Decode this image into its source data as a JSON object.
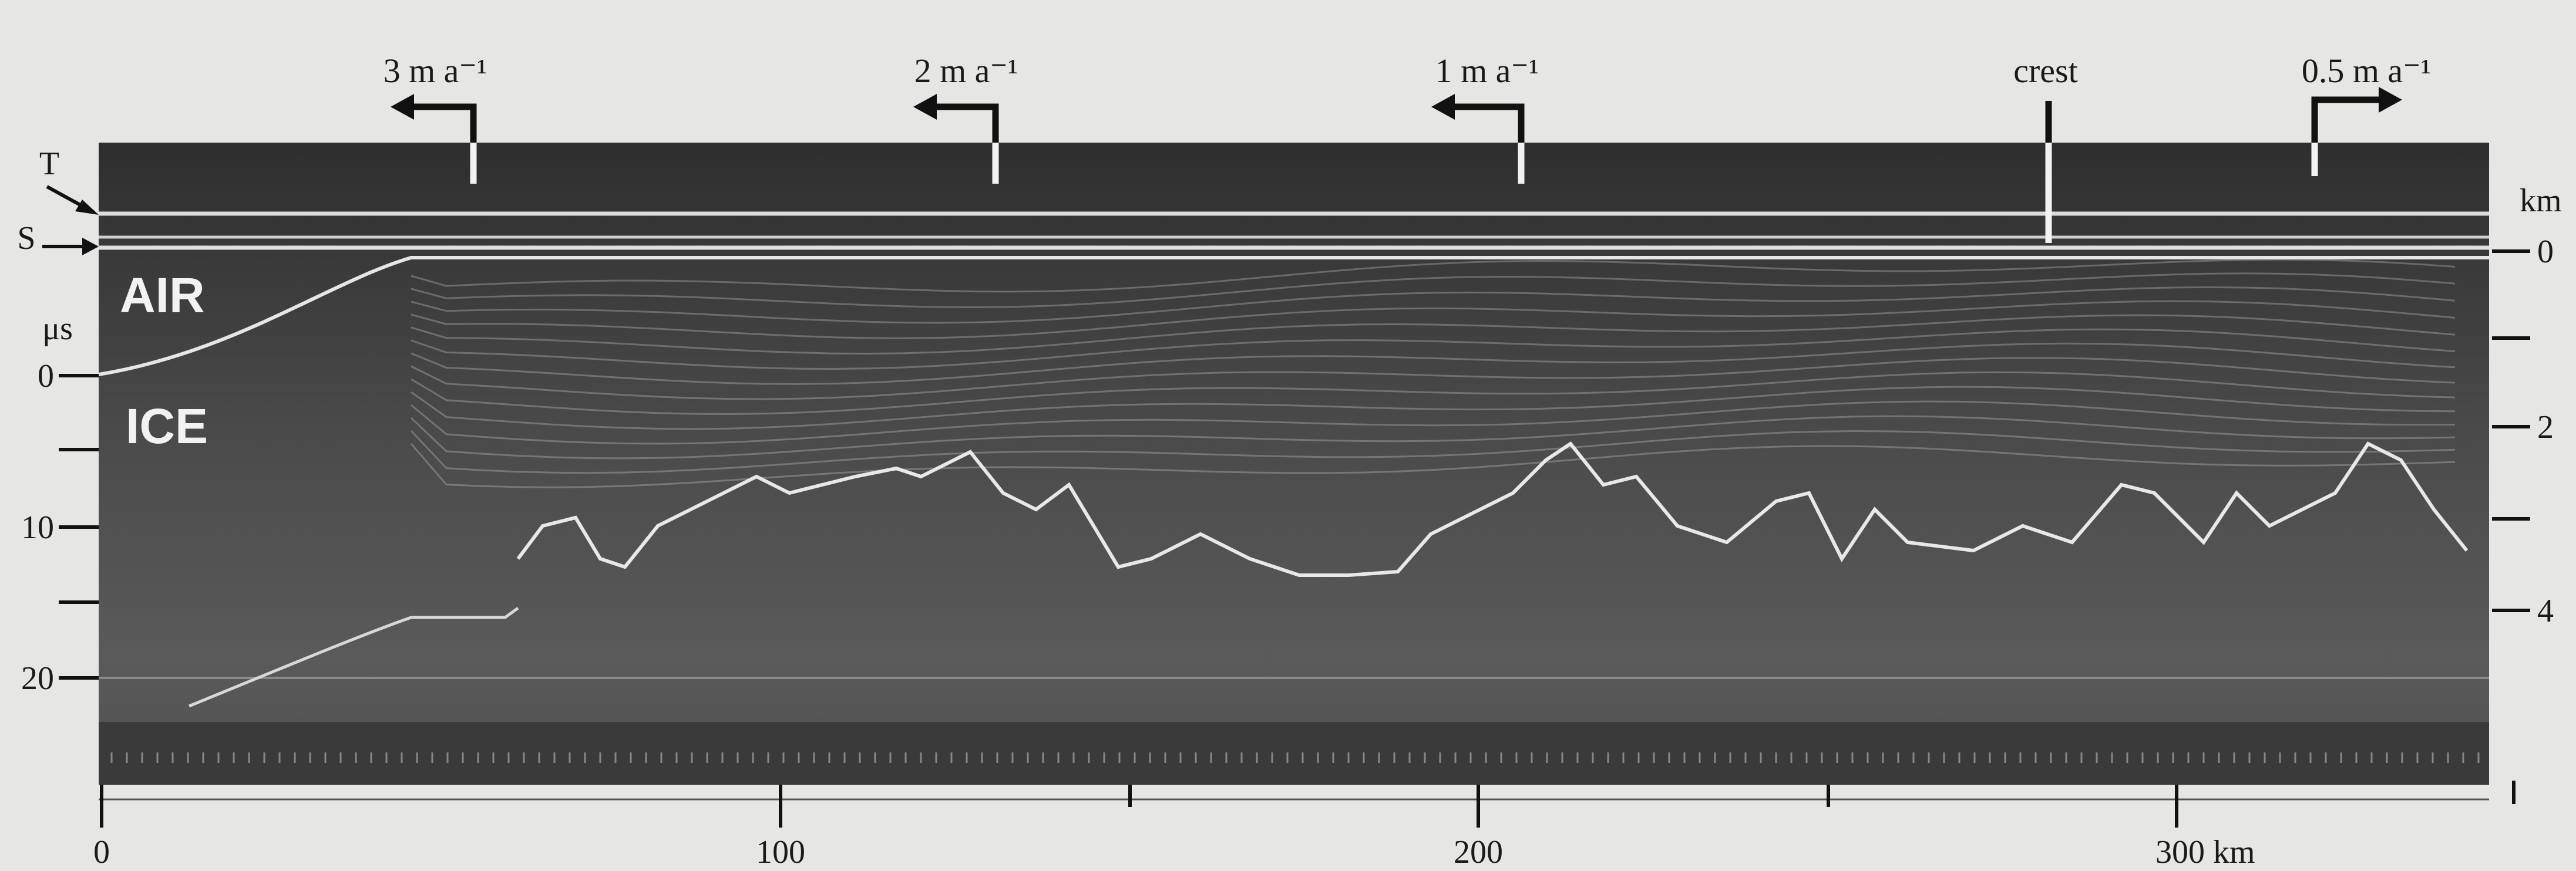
{
  "top_labels": [
    "3 m a⁻¹",
    "2 m a⁻¹",
    "1 m a⁻¹",
    "crest",
    "0.5 m a⁻¹"
  ],
  "markers": [
    "T",
    "S"
  ],
  "regions": [
    "AIR",
    "ICE"
  ],
  "left_axis": {
    "unit": "μs",
    "ticks": [
      0,
      10,
      20
    ]
  },
  "right_axis": {
    "unit": "km",
    "ticks": [
      0,
      2,
      4
    ]
  },
  "bottom_axis": {
    "ticks": [
      0,
      100,
      200,
      "300 km"
    ]
  }
}
